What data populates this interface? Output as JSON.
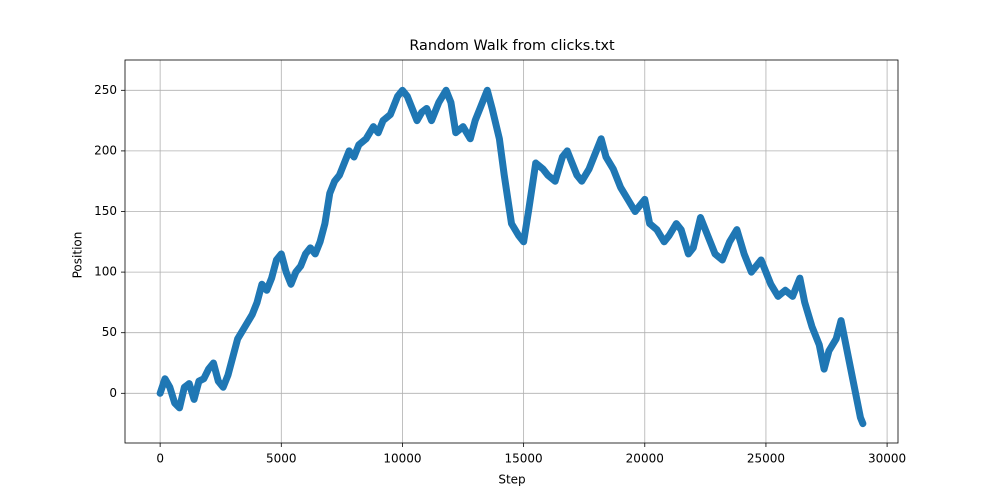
{
  "chart_data": {
    "type": "line",
    "title": "Random Walk from clicks.txt",
    "xlabel": "Step",
    "ylabel": "Position",
    "x": [
      0,
      200,
      400,
      600,
      800,
      1000,
      1200,
      1400,
      1600,
      1800,
      2000,
      2200,
      2400,
      2600,
      2800,
      3000,
      3200,
      3500,
      3800,
      4000,
      4200,
      4400,
      4600,
      4800,
      5000,
      5200,
      5400,
      5600,
      5800,
      6000,
      6200,
      6400,
      6600,
      6800,
      7000,
      7200,
      7400,
      7600,
      7800,
      8000,
      8200,
      8500,
      8800,
      9000,
      9200,
      9500,
      9800,
      10000,
      10200,
      10400,
      10600,
      10800,
      11000,
      11200,
      11500,
      11800,
      12000,
      12200,
      12500,
      12800,
      13000,
      13300,
      13500,
      13700,
      14000,
      14200,
      14500,
      14800,
      15000,
      15200,
      15500,
      15800,
      16000,
      16300,
      16600,
      16800,
      17000,
      17200,
      17400,
      17700,
      17900,
      18200,
      18400,
      18700,
      19000,
      19300,
      19600,
      19800,
      20000,
      20200,
      20500,
      20800,
      21000,
      21300,
      21500,
      21800,
      22000,
      22300,
      22600,
      22900,
      23200,
      23500,
      23800,
      24100,
      24400,
      24800,
      25200,
      25500,
      25800,
      26100,
      26400,
      26600,
      26900,
      27200,
      27400,
      27600,
      27900,
      28100,
      28300,
      28500,
      28700,
      28900,
      29000
    ],
    "series": [
      {
        "name": "Position",
        "color": "#1f77b4",
        "values": [
          0,
          12,
          5,
          -8,
          -12,
          5,
          8,
          -5,
          10,
          12,
          20,
          25,
          10,
          5,
          15,
          30,
          45,
          55,
          65,
          75,
          90,
          85,
          95,
          110,
          115,
          100,
          90,
          100,
          105,
          115,
          120,
          115,
          125,
          140,
          165,
          175,
          180,
          190,
          200,
          195,
          205,
          210,
          220,
          215,
          225,
          230,
          245,
          250,
          245,
          235,
          225,
          232,
          235,
          225,
          240,
          250,
          240,
          215,
          220,
          210,
          225,
          240,
          250,
          235,
          210,
          180,
          140,
          130,
          125,
          150,
          190,
          185,
          180,
          175,
          195,
          200,
          190,
          180,
          175,
          185,
          195,
          210,
          195,
          185,
          170,
          160,
          150,
          155,
          160,
          140,
          135,
          125,
          130,
          140,
          135,
          115,
          120,
          145,
          130,
          115,
          110,
          125,
          135,
          115,
          100,
          110,
          90,
          80,
          85,
          80,
          95,
          75,
          55,
          40,
          20,
          35,
          45,
          60,
          40,
          20,
          0,
          -20,
          -25
        ]
      }
    ],
    "xlim": [
      -1450,
      30450
    ],
    "ylim": [
      -41,
      275
    ],
    "xticks": [
      0,
      5000,
      10000,
      15000,
      20000,
      25000,
      30000
    ],
    "yticks": [
      0,
      50,
      100,
      150,
      200,
      250
    ],
    "grid": true
  }
}
